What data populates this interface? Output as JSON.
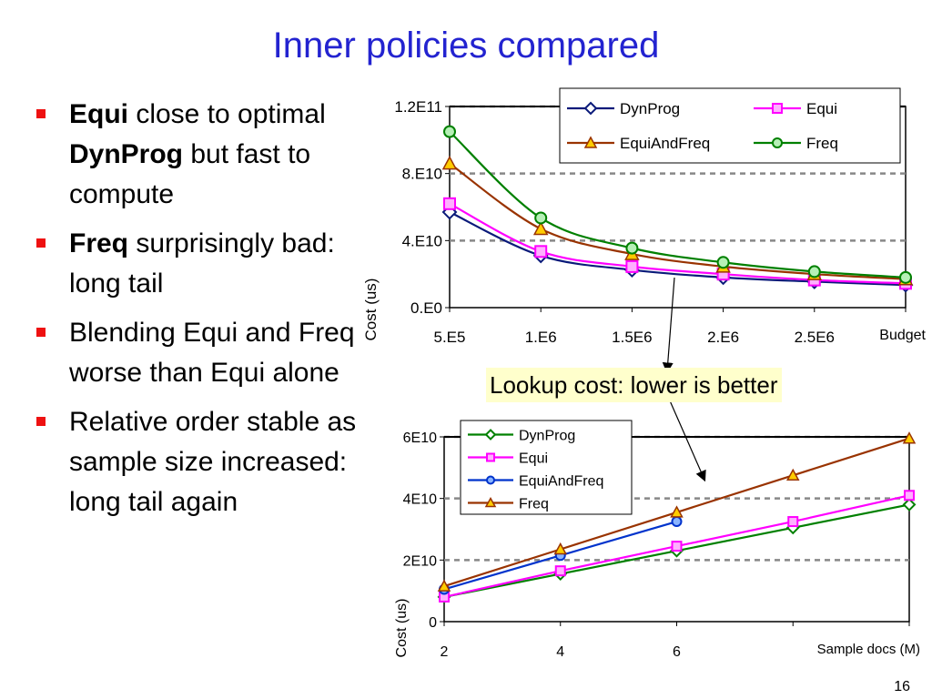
{
  "title": "Inner policies compared",
  "bullets": [
    {
      "bold": "Equi",
      "text_a": " close to optimal ",
      "bold2": "DynProg",
      "text_b": " but fast to compute"
    },
    {
      "bold": "Freq",
      "text_a": " surprisingly bad: long tail",
      "bold2": "",
      "text_b": ""
    },
    {
      "bold": "",
      "text_a": "Blending Equi and Freq worse than Equi alone",
      "bold2": "",
      "text_b": ""
    },
    {
      "bold": "",
      "text_a": "Relative order stable as sample size increased: long tail again",
      "bold2": "",
      "text_b": ""
    }
  ],
  "callout": "Lookup cost: lower is better",
  "page_number": "16",
  "chart_data": [
    {
      "type": "line",
      "title": "",
      "xlabel": "Budget",
      "ylabel": "Cost (us)",
      "x": [
        500000,
        1000000,
        1500000,
        2000000,
        2500000,
        3000000
      ],
      "x_tick_labels": [
        "5.E5",
        "1.E6",
        "1.5E6",
        "2.E6",
        "2.5E6"
      ],
      "y_tick_labels": [
        "0.E0",
        "4.E10",
        "8.E10",
        "1.2E11"
      ],
      "ylim": [
        0,
        120000000000
      ],
      "xlim": [
        500000,
        3000000
      ],
      "grid": "horizontal dashed",
      "legend_position": "top-right",
      "series": [
        {
          "name": "DynProg",
          "color": "#0a1a7a",
          "marker": "diamond",
          "values": [
            57000000000,
            31000000000,
            22500000000,
            18000000000,
            15500000000,
            13500000000
          ]
        },
        {
          "name": "Equi",
          "color": "#ff00ff",
          "marker": "square",
          "values": [
            62000000000,
            33500000000,
            24500000000,
            20000000000,
            16500000000,
            14500000000
          ]
        },
        {
          "name": "EquiAndFreq",
          "color": "#993300",
          "marker": "triangle",
          "values": [
            86000000000,
            47000000000,
            32000000000,
            24500000000,
            20000000000,
            17000000000
          ]
        },
        {
          "name": "Freq",
          "color": "#008000",
          "marker": "circle",
          "values": [
            105000000000,
            53500000000,
            35500000000,
            27000000000,
            21500000000,
            18000000000
          ]
        }
      ]
    },
    {
      "type": "line",
      "title": "",
      "xlabel": "Sample docs (M)",
      "ylabel": "Cost (us)",
      "x": [
        2,
        4,
        6,
        8,
        10
      ],
      "x_tick_labels": [
        "2",
        "4",
        "6"
      ],
      "y_tick_labels": [
        "0",
        "2E10",
        "4E10",
        "6E10"
      ],
      "ylim": [
        0,
        60000000000
      ],
      "xlim": [
        2,
        10
      ],
      "grid": "horizontal dashed",
      "legend_position": "top-left",
      "series": [
        {
          "name": "DynProg",
          "color": "#008000",
          "marker": "diamond",
          "x": [
            2,
            4,
            6,
            8,
            10
          ],
          "values": [
            8000000000,
            15500000000,
            23000000000,
            30500000000,
            38000000000
          ]
        },
        {
          "name": "Equi",
          "color": "#ff00ff",
          "marker": "square",
          "x": [
            2,
            4,
            6,
            8,
            10
          ],
          "values": [
            8000000000,
            16500000000,
            24500000000,
            32500000000,
            41000000000
          ]
        },
        {
          "name": "EquiAndFreq",
          "color": "#0033cc",
          "marker": "circle",
          "x": [
            2,
            4,
            6
          ],
          "values": [
            10500000000,
            21500000000,
            32500000000
          ]
        },
        {
          "name": "Freq",
          "color": "#993300",
          "marker": "triangle",
          "x": [
            2,
            4,
            6,
            8,
            10
          ],
          "values": [
            11500000000,
            23500000000,
            35500000000,
            47500000000,
            59500000000
          ]
        }
      ]
    }
  ]
}
